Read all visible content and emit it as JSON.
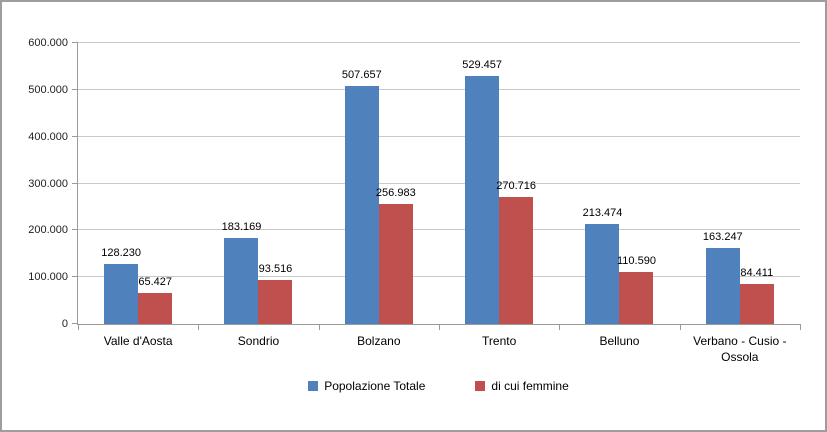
{
  "style": {
    "frame_border_color": "#9d9d9d",
    "axis_line_color": "#9a9a9a",
    "gridline_color": "#c9c9c9",
    "background": "#ffffff"
  },
  "chart_data": {
    "type": "bar",
    "title": "",
    "xlabel": "",
    "ylabel": "",
    "grid": true,
    "legend_position": "bottom",
    "ylim": [
      0,
      600000
    ],
    "ytick_step": 100000,
    "yticks": [
      {
        "value": 0,
        "label": "0"
      },
      {
        "value": 100000,
        "label": "100.000"
      },
      {
        "value": 200000,
        "label": "200.000"
      },
      {
        "value": 300000,
        "label": "300.000"
      },
      {
        "value": 400000,
        "label": "400.000"
      },
      {
        "value": 500000,
        "label": "500.000"
      },
      {
        "value": 600000,
        "label": "600.000"
      }
    ],
    "categories": [
      "Valle d'Aosta",
      "Sondrio",
      "Bolzano",
      "Trento",
      "Belluno",
      "Verbano - Cusio - Ossola"
    ],
    "series": [
      {
        "name": "Popolazione Totale",
        "color": "#4F81BD",
        "values": [
          128230,
          183169,
          507657,
          529457,
          213474,
          163247
        ],
        "labels": [
          "128.230",
          "183.169",
          "507.657",
          "529.457",
          "213.474",
          "163.247"
        ]
      },
      {
        "name": "di cui femmine",
        "color": "#C0504D",
        "values": [
          65427,
          93516,
          256983,
          270716,
          110590,
          84411
        ],
        "labels": [
          "65.427",
          "93.516",
          "256.983",
          "270.716",
          "110.590",
          "84.411"
        ]
      }
    ]
  }
}
